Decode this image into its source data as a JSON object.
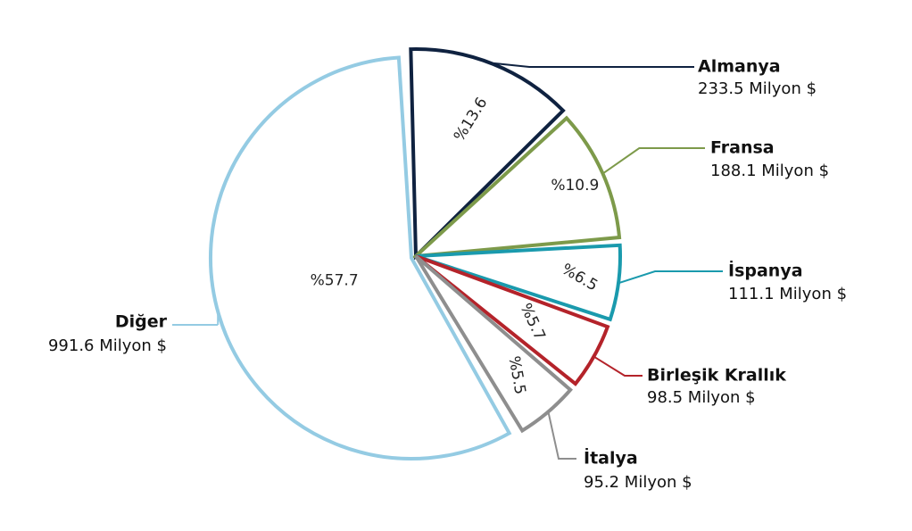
{
  "chart_data": {
    "type": "pie",
    "slices": [
      {
        "name": "Almanya",
        "value": 233.5,
        "value_label": "233.5 Milyon $",
        "percent_label": "%13.6",
        "color": "#0f2240"
      },
      {
        "name": "Fransa",
        "value": 188.1,
        "value_label": "188.1 Milyon $",
        "percent_label": "%10.9",
        "color": "#7d9a4a"
      },
      {
        "name": "İspanya",
        "value": 111.1,
        "value_label": "111.1 Milyon $",
        "percent_label": "%6.5",
        "color": "#1a9aad"
      },
      {
        "name": "Birleşik Krallık",
        "value": 98.5,
        "value_label": "98.5 Milyon $",
        "percent_label": "%5.7",
        "color": "#b4232a"
      },
      {
        "name": "İtalya",
        "value": 95.2,
        "value_label": "95.2 Milyon $",
        "percent_label": "%5.5",
        "color": "#8e8e8e"
      },
      {
        "name": "Diğer",
        "value": 991.6,
        "value_label": "991.6 Milyon $",
        "percent_label": "%57.7",
        "color": "#94cbe3"
      }
    ]
  }
}
